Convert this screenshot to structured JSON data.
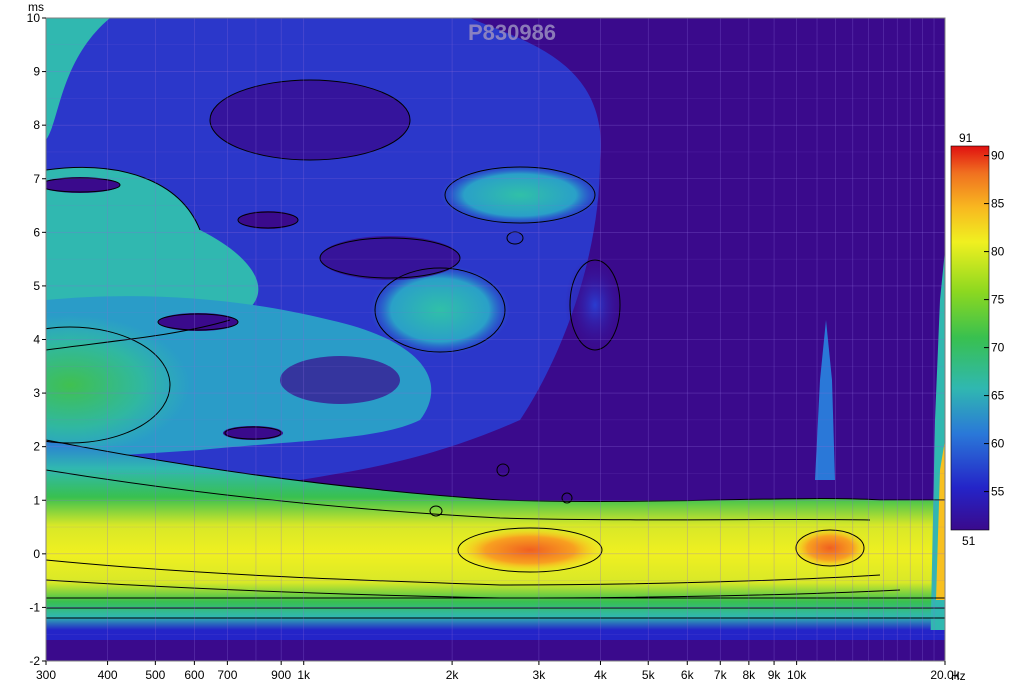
{
  "chart_data": {
    "type": "heatmap",
    "title": "",
    "watermark": "P830986",
    "xlabel": "Hz",
    "ylabel": "ms",
    "x_scale": "log",
    "xlim": [
      300,
      20000
    ],
    "ylim": [
      -2,
      10
    ],
    "grid": true,
    "x_ticks": [
      {
        "v": 300,
        "label": "300"
      },
      {
        "v": 400,
        "label": "400"
      },
      {
        "v": 500,
        "label": "500"
      },
      {
        "v": 600,
        "label": "600"
      },
      {
        "v": 700,
        "label": "700"
      },
      {
        "v": 900,
        "label": "900"
      },
      {
        "v": 1000,
        "label": "1k"
      },
      {
        "v": 2000,
        "label": "2k"
      },
      {
        "v": 3000,
        "label": "3k"
      },
      {
        "v": 4000,
        "label": "4k"
      },
      {
        "v": 5000,
        "label": "5k"
      },
      {
        "v": 6000,
        "label": "6k"
      },
      {
        "v": 7000,
        "label": "7k"
      },
      {
        "v": 8000,
        "label": "8k"
      },
      {
        "v": 9000,
        "label": "9k"
      },
      {
        "v": 10000,
        "label": "10k"
      },
      {
        "v": 20000,
        "label": "20.0k"
      }
    ],
    "y_ticks": [
      -2,
      -1,
      0,
      1,
      2,
      3,
      4,
      5,
      6,
      7,
      8,
      9,
      10
    ],
    "colorbar": {
      "min": 51,
      "max": 91,
      "ticks": [
        55,
        60,
        65,
        70,
        75,
        80,
        85,
        90
      ],
      "min_label": "51",
      "max_label": "91",
      "colors": [
        "#3a0a8c",
        "#2424c8",
        "#2a78d8",
        "#30b8b0",
        "#38c050",
        "#8cd820",
        "#f0f020",
        "#f8b820",
        "#f07020",
        "#e01010"
      ]
    },
    "features": [
      {
        "name": "main-ridge",
        "f": [
          300,
          600,
          1000,
          2000,
          2800,
          4000,
          8000,
          13000,
          17000
        ],
        "t": [
          0.45,
          0.35,
          0.3,
          0.22,
          0.12,
          0.05,
          0.05,
          0.12,
          0.2
        ],
        "level": [
          82,
          83,
          82,
          84,
          88,
          84,
          82,
          87,
          72
        ]
      },
      {
        "name": "hot-spot-2.8k",
        "f_center": 2800,
        "t_center": 0.1,
        "level": 88
      },
      {
        "name": "hot-spot-12.5k",
        "f_center": 12500,
        "t_center": 0.15,
        "level": 87
      },
      {
        "name": "low-freq-ridge-3ms",
        "f_center": 300,
        "t_center": 3.1,
        "level": 75
      }
    ]
  }
}
